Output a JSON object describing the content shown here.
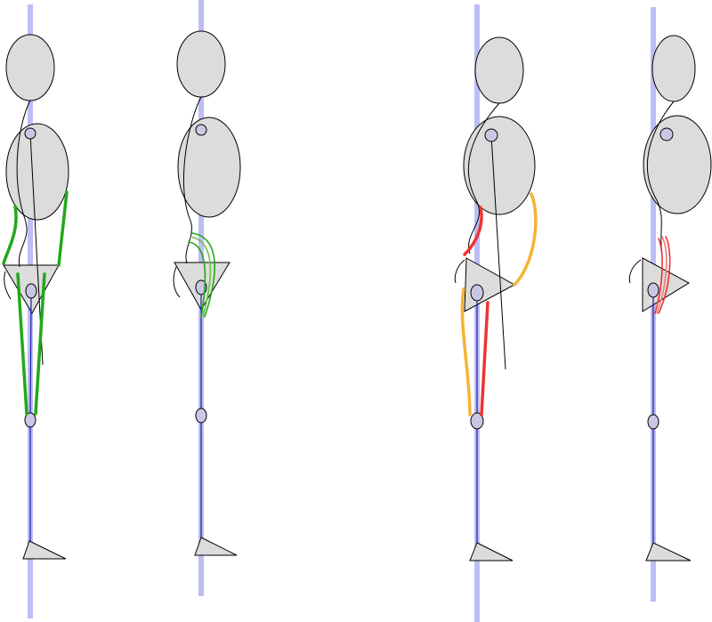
{
  "figure": {
    "figures": [
      {
        "id": "figure-1",
        "muscle_group": "green"
      },
      {
        "id": "figure-2",
        "muscle_group": "green"
      },
      {
        "id": "figure-3",
        "muscle_group": "red-orange"
      },
      {
        "id": "figure-4",
        "muscle_group": "red"
      }
    ],
    "colors": {
      "gravity_line": "#bdbdf5",
      "body_part_fill": "#dcdcdc",
      "joint_fill": "#c8c8e6",
      "leg_line": "#1a1aa8",
      "muscle_green": "#22a81a",
      "muscle_green_light": "#6cc24a",
      "muscle_red": "#ee3333",
      "muscle_red_light": "#f07a7a",
      "muscle_orange": "#f6b233"
    }
  }
}
